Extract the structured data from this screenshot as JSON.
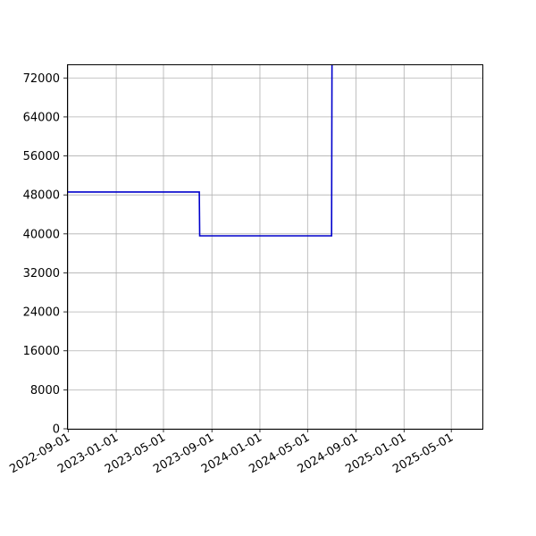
{
  "chart_data": {
    "type": "line",
    "title": "",
    "xlabel": "",
    "ylabel": "",
    "grid": true,
    "x_axis": {
      "kind": "date",
      "range": [
        "2022-08-29",
        "2025-07-19"
      ],
      "ticks": [
        "2022-09-01",
        "2023-01-01",
        "2023-05-01",
        "2023-09-01",
        "2024-01-01",
        "2024-05-01",
        "2024-09-01",
        "2025-01-01",
        "2025-05-01"
      ]
    },
    "y_axis": {
      "range": [
        0,
        74800
      ],
      "ticks": [
        0,
        8000,
        16000,
        24000,
        32000,
        40000,
        48000,
        56000,
        64000,
        72000
      ]
    },
    "series": [
      {
        "color": "#0000cc",
        "points": [
          {
            "x": "2022-08-29",
            "y": 48600
          },
          {
            "x": "2023-07-31",
            "y": 48600
          },
          {
            "x": "2023-08-01",
            "y": 39600
          },
          {
            "x": "2024-07-01",
            "y": 39600
          },
          {
            "x": "2024-07-02",
            "y": 74800
          }
        ]
      }
    ]
  }
}
